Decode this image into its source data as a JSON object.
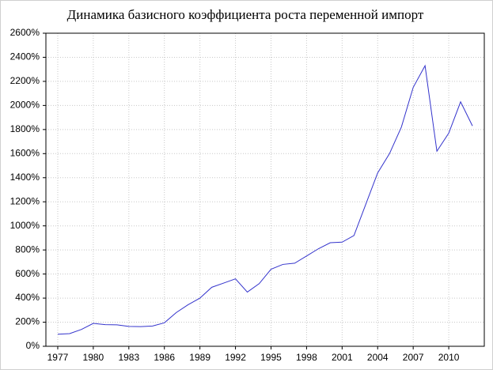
{
  "chart_data": {
    "type": "line",
    "title": "Динамика базисного коэффициента роста переменной импорт",
    "x": [
      1977,
      1978,
      1979,
      1980,
      1981,
      1982,
      1983,
      1984,
      1985,
      1986,
      1987,
      1988,
      1989,
      1990,
      1991,
      1992,
      1993,
      1994,
      1995,
      1996,
      1997,
      1998,
      1999,
      2000,
      2001,
      2002,
      2003,
      2004,
      2005,
      2006,
      2007,
      2008,
      2009,
      2010,
      2011,
      2012
    ],
    "series": [
      {
        "name": "импорт",
        "color": "#3333cc",
        "values": [
          100,
          105,
          140,
          190,
          180,
          178,
          165,
          163,
          168,
          195,
          280,
          345,
          400,
          490,
          525,
          560,
          450,
          520,
          640,
          680,
          690,
          750,
          810,
          860,
          865,
          920,
          1180,
          1440,
          1600,
          1820,
          2150,
          2330,
          1620,
          1770,
          2030,
          1830
        ]
      }
    ],
    "xlim": [
      1976,
      2013
    ],
    "xticks": [
      1977,
      1980,
      1983,
      1986,
      1989,
      1992,
      1995,
      1998,
      2001,
      2004,
      2007,
      2010
    ],
    "ylim": [
      0,
      2600
    ],
    "yticks": [
      {
        "value": 0,
        "label": "0%"
      },
      {
        "value": 200,
        "label": "200%"
      },
      {
        "value": 400,
        "label": "400%"
      },
      {
        "value": 600,
        "label": "600%"
      },
      {
        "value": 800,
        "label": "800%"
      },
      {
        "value": 1000,
        "label": "1000%"
      },
      {
        "value": 1200,
        "label": "1200%"
      },
      {
        "value": 1400,
        "label": "1400%"
      },
      {
        "value": 1600,
        "label": "1600%"
      },
      {
        "value": 1800,
        "label": "1800%"
      },
      {
        "value": 2000,
        "label": "2000%"
      },
      {
        "value": 2200,
        "label": "2200%"
      },
      {
        "value": 2400,
        "label": "2400%"
      },
      {
        "value": 2600,
        "label": "2600%"
      }
    ],
    "grid": true
  }
}
